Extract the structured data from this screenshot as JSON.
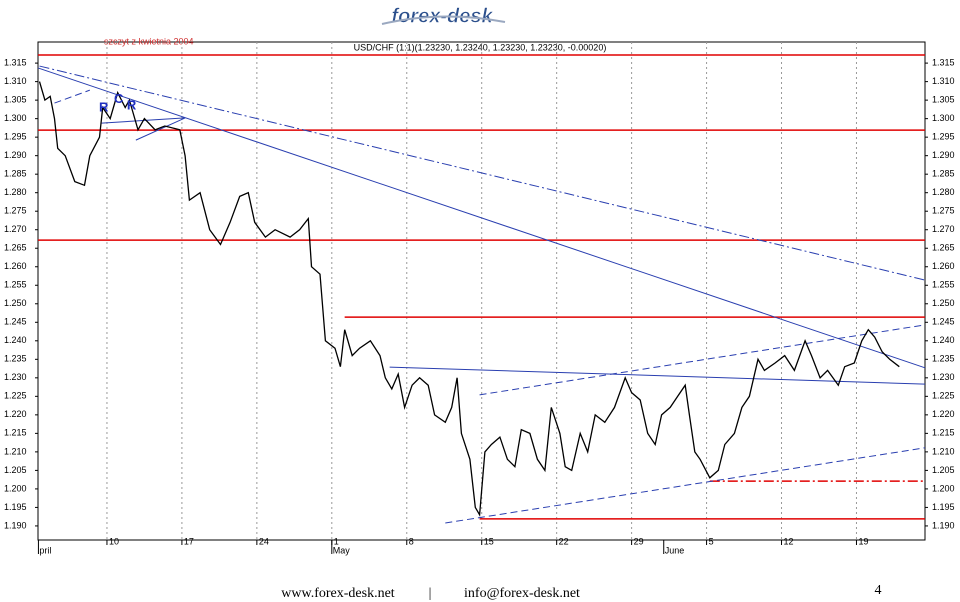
{
  "header": {
    "logo": "forex-desk"
  },
  "footer": {
    "site": "www.forex-desk.net",
    "separator": "|",
    "email": "info@forex-desk.net",
    "page": "4"
  },
  "chart_data": {
    "type": "line",
    "title": "USD/CHF (1:1)(1.23230, 1.23240, 1.23230, 1.23230, -0.00020)",
    "annotation": "szczyt z kwietnia 2004",
    "markers": [
      {
        "label": "R",
        "x": 8.7,
        "value": 1.3029
      },
      {
        "label": "C",
        "x": 10.1,
        "value": 1.3051
      },
      {
        "label": "R",
        "x": 11.3,
        "value": 1.3034
      }
    ],
    "xlim": [
      2.56,
      85.4
    ],
    "ylim": [
      1.1862,
      1.3207
    ],
    "xticks": [
      {
        "value": 9,
        "label": "10"
      },
      {
        "value": 16,
        "label": "17"
      },
      {
        "value": 23,
        "label": "24"
      },
      {
        "value": 30,
        "label": "1"
      },
      {
        "value": 37,
        "label": "8"
      },
      {
        "value": 44,
        "label": "15"
      },
      {
        "value": 51,
        "label": "22"
      },
      {
        "value": 58,
        "label": "29"
      },
      {
        "value": 65,
        "label": "5"
      },
      {
        "value": 72,
        "label": "12"
      },
      {
        "value": 79,
        "label": "19"
      }
    ],
    "month_ticks": [
      {
        "value": 2.6,
        "label": "pril"
      },
      {
        "value": 30,
        "label": "May"
      },
      {
        "value": 61,
        "label": "June"
      }
    ],
    "yticks": [
      {
        "value": 1.19,
        "label": "1.190"
      },
      1.195,
      {
        "value": 1.2,
        "label": "1.200"
      },
      1.205,
      {
        "value": 1.21,
        "label": "1.210"
      },
      1.215,
      {
        "value": 1.22,
        "label": "1.220"
      },
      1.225,
      {
        "value": 1.23,
        "label": "1.230"
      },
      1.235,
      {
        "value": 1.24,
        "label": "1.240"
      },
      1.245,
      {
        "value": 1.25,
        "label": "1.250"
      },
      1.255,
      {
        "value": 1.26,
        "label": "1.260"
      },
      1.265,
      {
        "value": 1.27,
        "label": "1.270"
      },
      1.275,
      {
        "value": 1.28,
        "label": "1.280"
      },
      1.285,
      {
        "value": 1.29,
        "label": "1.290"
      },
      1.295,
      {
        "value": 1.3,
        "label": "1.300"
      },
      1.305,
      {
        "value": 1.31,
        "label": "1.310"
      },
      1.315
    ],
    "xgrid": true,
    "series": [
      {
        "color": "#000000",
        "x": [
          2.7,
          3.2,
          3.7,
          4.1,
          4.4,
          5.1,
          6.0,
          6.9,
          7.4,
          8.3,
          8.6,
          9.3,
          10.0,
          10.7,
          11.1,
          11.9,
          12.5,
          13.5,
          14.4,
          15.8,
          16.3,
          16.7,
          17.7,
          18.6,
          19.6,
          20.5,
          21.4,
          22.2,
          22.8,
          23.8,
          24.7,
          26.1,
          27.0,
          27.8,
          28.1,
          28.9,
          29.4,
          30.3,
          30.8,
          31.2,
          31.9,
          32.6,
          33.6,
          34.5,
          35.0,
          35.6,
          36.2,
          36.8,
          37.5,
          38.2,
          39.0,
          39.6,
          40.6,
          41.2,
          41.7,
          42.1,
          42.9,
          43.4,
          43.8,
          44.3,
          44.9,
          45.7,
          46.4,
          47.1,
          47.7,
          48.5,
          49.2,
          49.9,
          50.5,
          51.3,
          51.8,
          52.4,
          53.2,
          53.9,
          54.6,
          55.5,
          56.4,
          57.4,
          58.0,
          58.8,
          59.5,
          60.2,
          60.8,
          61.6,
          62.3,
          63.0,
          63.4,
          63.9,
          64.4,
          65.3,
          66.1,
          66.7,
          67.6,
          68.3,
          69.0,
          69.8,
          70.4,
          71.4,
          72.3,
          73.2,
          74.2,
          74.8,
          75.6,
          76.3,
          77.3,
          77.9,
          78.8,
          79.5,
          80.1,
          80.7,
          81.4,
          82.1,
          83.0
        ],
        "values": [
          1.31,
          1.305,
          1.306,
          1.3,
          1.292,
          1.29,
          1.283,
          1.282,
          1.29,
          1.295,
          1.303,
          1.3,
          1.307,
          1.303,
          1.305,
          1.297,
          1.3,
          1.297,
          1.298,
          1.297,
          1.29,
          1.278,
          1.28,
          1.27,
          1.266,
          1.272,
          1.279,
          1.28,
          1.272,
          1.268,
          1.27,
          1.268,
          1.27,
          1.273,
          1.26,
          1.258,
          1.24,
          1.238,
          1.233,
          1.243,
          1.236,
          1.238,
          1.24,
          1.236,
          1.23,
          1.227,
          1.231,
          1.222,
          1.228,
          1.23,
          1.228,
          1.22,
          1.218,
          1.222,
          1.23,
          1.215,
          1.208,
          1.195,
          1.193,
          1.21,
          1.212,
          1.214,
          1.208,
          1.206,
          1.216,
          1.215,
          1.208,
          1.205,
          1.222,
          1.215,
          1.206,
          1.205,
          1.215,
          1.21,
          1.22,
          1.218,
          1.222,
          1.23,
          1.226,
          1.224,
          1.215,
          1.212,
          1.22,
          1.222,
          1.225,
          1.228,
          1.22,
          1.21,
          1.208,
          1.203,
          1.205,
          1.212,
          1.215,
          1.222,
          1.225,
          1.235,
          1.232,
          1.234,
          1.236,
          1.232,
          1.24,
          1.236,
          1.23,
          1.232,
          1.228,
          1.233,
          1.234,
          1.24,
          1.243,
          1.241,
          1.237,
          1.235,
          1.233
        ]
      }
    ],
    "lines": [
      {
        "x": [
          2.56,
          85.4
        ],
        "values": [
          1.3172,
          1.3172
        ],
        "color": "#e00000",
        "style": "solid"
      },
      {
        "x": [
          2.56,
          85.4
        ],
        "values": [
          1.2969,
          1.2969
        ],
        "color": "#e00000",
        "style": "solid"
      },
      {
        "x": [
          2.56,
          85.4
        ],
        "values": [
          1.2672,
          1.2672
        ],
        "color": "#e00000",
        "style": "solid"
      },
      {
        "x": [
          31.2,
          85.4
        ],
        "values": [
          1.2464,
          1.2464
        ],
        "color": "#e00000",
        "style": "solid"
      },
      {
        "x": [
          43.8,
          85.4
        ],
        "values": [
          1.1919,
          1.1919
        ],
        "color": "#e00000",
        "style": "solid"
      },
      {
        "x": [
          65.3,
          85.4
        ],
        "values": [
          1.2021,
          1.2021
        ],
        "color": "#e00000",
        "style": "dashdot"
      },
      {
        "x": [
          2.56,
          85.4
        ],
        "values": [
          1.3137,
          1.2327
        ],
        "color": "#2a3fb0",
        "style": "solid"
      },
      {
        "x": [
          2.7,
          85.4
        ],
        "values": [
          1.3142,
          1.2564
        ],
        "color": "#2a3fb0",
        "style": "dashdot"
      },
      {
        "x": [
          43.8,
          85.4
        ],
        "values": [
          1.2254,
          1.2443
        ],
        "color": "#2a3fb0",
        "style": "dashed"
      },
      {
        "x": [
          40.6,
          85.4
        ],
        "values": [
          1.1908,
          1.2111
        ],
        "color": "#2a3fb0",
        "style": "dashed"
      },
      {
        "x": [
          35.4,
          85.4
        ],
        "values": [
          1.2329,
          1.2283
        ],
        "color": "#2a3fb0",
        "style": "solid"
      },
      {
        "x": [
          4.1,
          7.4
        ],
        "values": [
          1.3042,
          1.3077
        ],
        "color": "#2a3fb0",
        "style": "dashed"
      },
      {
        "x": [
          8.5,
          16.3
        ],
        "values": [
          1.2988,
          1.3002
        ],
        "color": "#2a3fb0",
        "style": "solid"
      },
      {
        "x": [
          11.7,
          16.3
        ],
        "values": [
          1.2942,
          1.3002
        ],
        "color": "#2a3fb0",
        "style": "solid"
      }
    ]
  }
}
